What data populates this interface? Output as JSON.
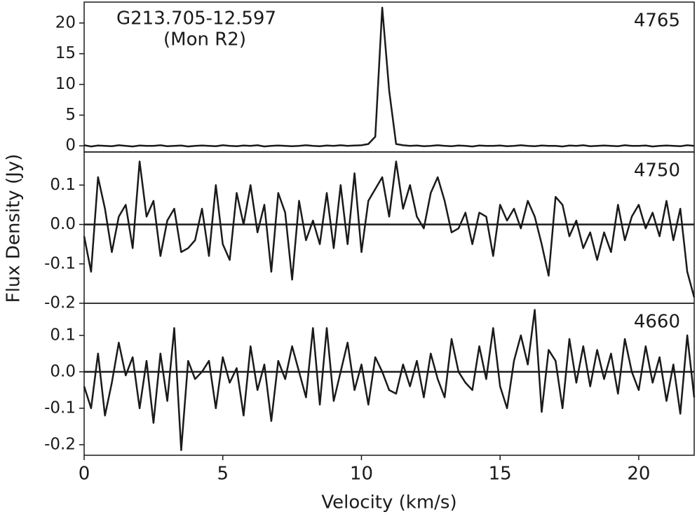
{
  "ylabel": "Flux Density (Jy)",
  "chart_data": [
    {
      "type": "line",
      "title": "G213.705-12.597",
      "subtitle": "(Mon R2)",
      "label": "4765",
      "color": "#1a1a1a",
      "xlim": [
        0,
        22
      ],
      "ylim": [
        -1,
        23.4
      ],
      "yticks": [
        0,
        5,
        10,
        15,
        20
      ],
      "x": [
        0,
        0.25,
        0.5,
        0.75,
        1,
        1.25,
        1.5,
        1.75,
        2,
        2.25,
        2.5,
        2.75,
        3,
        3.25,
        3.5,
        3.75,
        4,
        4.25,
        4.5,
        4.75,
        5,
        5.25,
        5.5,
        5.75,
        6,
        6.25,
        6.5,
        6.75,
        7,
        7.25,
        7.5,
        7.75,
        8,
        8.25,
        8.5,
        8.75,
        9,
        9.25,
        9.5,
        9.75,
        10,
        10.25,
        10.5,
        10.75,
        11,
        11.25,
        11.5,
        11.75,
        12,
        12.25,
        12.5,
        12.75,
        13,
        13.25,
        13.5,
        13.75,
        14,
        14.25,
        14.5,
        14.75,
        15,
        15.25,
        15.5,
        15.75,
        16,
        16.25,
        16.5,
        16.75,
        17,
        17.25,
        17.5,
        17.75,
        18,
        18.25,
        18.5,
        18.75,
        19,
        19.25,
        19.5,
        19.75,
        20,
        20.25,
        20.5,
        20.75,
        21,
        21.25,
        21.5,
        21.75,
        22
      ],
      "values": [
        0.1,
        -0.1,
        0.05,
        0,
        -0.05,
        0.1,
        0,
        -0.1,
        0.05,
        0,
        0,
        0.1,
        -0.05,
        0,
        0.05,
        -0.1,
        0,
        0.05,
        0,
        -0.05,
        0.1,
        0,
        -0.05,
        0.05,
        0,
        0.1,
        -0.1,
        0,
        0.05,
        0,
        -0.05,
        0,
        0.1,
        0,
        -0.05,
        0.05,
        0,
        0.1,
        0,
        0.05,
        0.1,
        0.3,
        1.5,
        22.5,
        9,
        0.3,
        0.1,
        0,
        0.05,
        -0.05,
        0,
        0.1,
        0,
        -0.05,
        0.05,
        0,
        -0.1,
        0.05,
        0,
        0,
        0.05,
        -0.05,
        0,
        0.1,
        0,
        -0.05,
        0.05,
        0,
        0,
        -0.1,
        0.05,
        0,
        0.1,
        -0.05,
        0,
        0.05,
        0,
        -0.05,
        0.1,
        0,
        0,
        0.05,
        -0.1,
        0,
        0.05,
        0,
        -0.05,
        0.1,
        0
      ]
    },
    {
      "type": "line",
      "label": "4750",
      "color": "#1a1a1a",
      "xlim": [
        0,
        22
      ],
      "ylim": [
        -0.2,
        0.184
      ],
      "yticks": [
        0.1,
        {
          "value": 0,
          "label": "0.0"
        },
        -0.1,
        -0.2
      ],
      "x": [
        0,
        0.25,
        0.5,
        0.75,
        1,
        1.25,
        1.5,
        1.75,
        2,
        2.25,
        2.5,
        2.75,
        3,
        3.25,
        3.5,
        3.75,
        4,
        4.25,
        4.5,
        4.75,
        5,
        5.25,
        5.5,
        5.75,
        6,
        6.25,
        6.5,
        6.75,
        7,
        7.25,
        7.5,
        7.75,
        8,
        8.25,
        8.5,
        8.75,
        9,
        9.25,
        9.5,
        9.75,
        10,
        10.25,
        10.5,
        10.75,
        11,
        11.25,
        11.5,
        11.75,
        12,
        12.25,
        12.5,
        12.75,
        13,
        13.25,
        13.5,
        13.75,
        14,
        14.25,
        14.5,
        14.75,
        15,
        15.25,
        15.5,
        15.75,
        16,
        16.25,
        16.5,
        16.75,
        17,
        17.25,
        17.5,
        17.75,
        18,
        18.25,
        18.5,
        18.75,
        19,
        19.25,
        19.5,
        19.75,
        20,
        20.25,
        20.5,
        20.75,
        21,
        21.25,
        21.5,
        21.75,
        22
      ],
      "values": [
        -0.03,
        -0.12,
        0.12,
        0.04,
        -0.07,
        0.02,
        0.05,
        -0.06,
        0.16,
        0.02,
        0.06,
        -0.08,
        0.01,
        0.04,
        -0.07,
        -0.06,
        -0.04,
        0.04,
        -0.08,
        0.1,
        -0.05,
        -0.09,
        0.08,
        0.0,
        0.1,
        -0.02,
        0.05,
        -0.12,
        0.08,
        0.03,
        -0.14,
        0.06,
        -0.04,
        0.01,
        -0.05,
        0.08,
        -0.06,
        0.1,
        -0.05,
        0.13,
        -0.07,
        0.06,
        0.09,
        0.12,
        0.02,
        0.16,
        0.04,
        0.1,
        0.02,
        -0.01,
        0.08,
        0.12,
        0.06,
        -0.02,
        -0.01,
        0.03,
        -0.05,
        0.03,
        0.02,
        -0.08,
        0.05,
        0.01,
        0.04,
        -0.01,
        0.06,
        0.02,
        -0.05,
        -0.13,
        0.07,
        0.05,
        -0.03,
        0.01,
        -0.06,
        -0.02,
        -0.09,
        -0.02,
        -0.07,
        0.05,
        -0.04,
        0.02,
        0.05,
        -0.01,
        0.03,
        -0.03,
        0.06,
        -0.04,
        0.04,
        -0.12,
        -0.185
      ]
    },
    {
      "type": "line",
      "label": "4660",
      "color": "#1a1a1a",
      "xlabel": "Velocity (km/s)",
      "xlim": [
        0,
        22
      ],
      "xticks": [
        0,
        5,
        10,
        15,
        20
      ],
      "ylim": [
        -0.229,
        0.188
      ],
      "yticks": [
        0.1,
        {
          "value": 0,
          "label": "0.0"
        },
        -0.1,
        -0.2
      ],
      "x": [
        0,
        0.25,
        0.5,
        0.75,
        1,
        1.25,
        1.5,
        1.75,
        2,
        2.25,
        2.5,
        2.75,
        3,
        3.25,
        3.5,
        3.75,
        4,
        4.25,
        4.5,
        4.75,
        5,
        5.25,
        5.5,
        5.75,
        6,
        6.25,
        6.5,
        6.75,
        7,
        7.25,
        7.5,
        7.75,
        8,
        8.25,
        8.5,
        8.75,
        9,
        9.25,
        9.5,
        9.75,
        10,
        10.25,
        10.5,
        10.75,
        11,
        11.25,
        11.5,
        11.75,
        12,
        12.25,
        12.5,
        12.75,
        13,
        13.25,
        13.5,
        13.75,
        14,
        14.25,
        14.5,
        14.75,
        15,
        15.25,
        15.5,
        15.75,
        16,
        16.25,
        16.5,
        16.75,
        17,
        17.25,
        17.5,
        17.75,
        18,
        18.25,
        18.5,
        18.75,
        19,
        19.25,
        19.5,
        19.75,
        20,
        20.25,
        20.5,
        20.75,
        21,
        21.25,
        21.5,
        21.75,
        22
      ],
      "values": [
        -0.04,
        -0.1,
        0.05,
        -0.12,
        -0.03,
        0.08,
        -0.01,
        0.04,
        -0.1,
        0.03,
        -0.14,
        0.05,
        -0.08,
        0.12,
        -0.215,
        0.03,
        -0.02,
        0.0,
        0.03,
        -0.1,
        0.04,
        -0.03,
        0.01,
        -0.12,
        0.07,
        -0.05,
        0.02,
        -0.135,
        0.03,
        -0.02,
        0.07,
        0.0,
        -0.07,
        0.12,
        -0.09,
        0.12,
        -0.08,
        0.0,
        0.08,
        -0.05,
        0.02,
        -0.09,
        0.04,
        0.0,
        -0.05,
        -0.06,
        0.02,
        -0.04,
        0.03,
        -0.07,
        0.05,
        -0.02,
        -0.07,
        0.09,
        0.0,
        -0.03,
        -0.05,
        0.07,
        -0.02,
        0.12,
        -0.04,
        -0.1,
        0.03,
        0.1,
        0.02,
        0.17,
        -0.11,
        0.06,
        0.03,
        -0.1,
        0.09,
        -0.03,
        0.07,
        -0.04,
        0.06,
        -0.02,
        0.05,
        -0.06,
        0.09,
        0.0,
        -0.05,
        0.07,
        -0.03,
        0.04,
        -0.08,
        0.02,
        -0.115,
        0.1,
        -0.07
      ]
    }
  ]
}
